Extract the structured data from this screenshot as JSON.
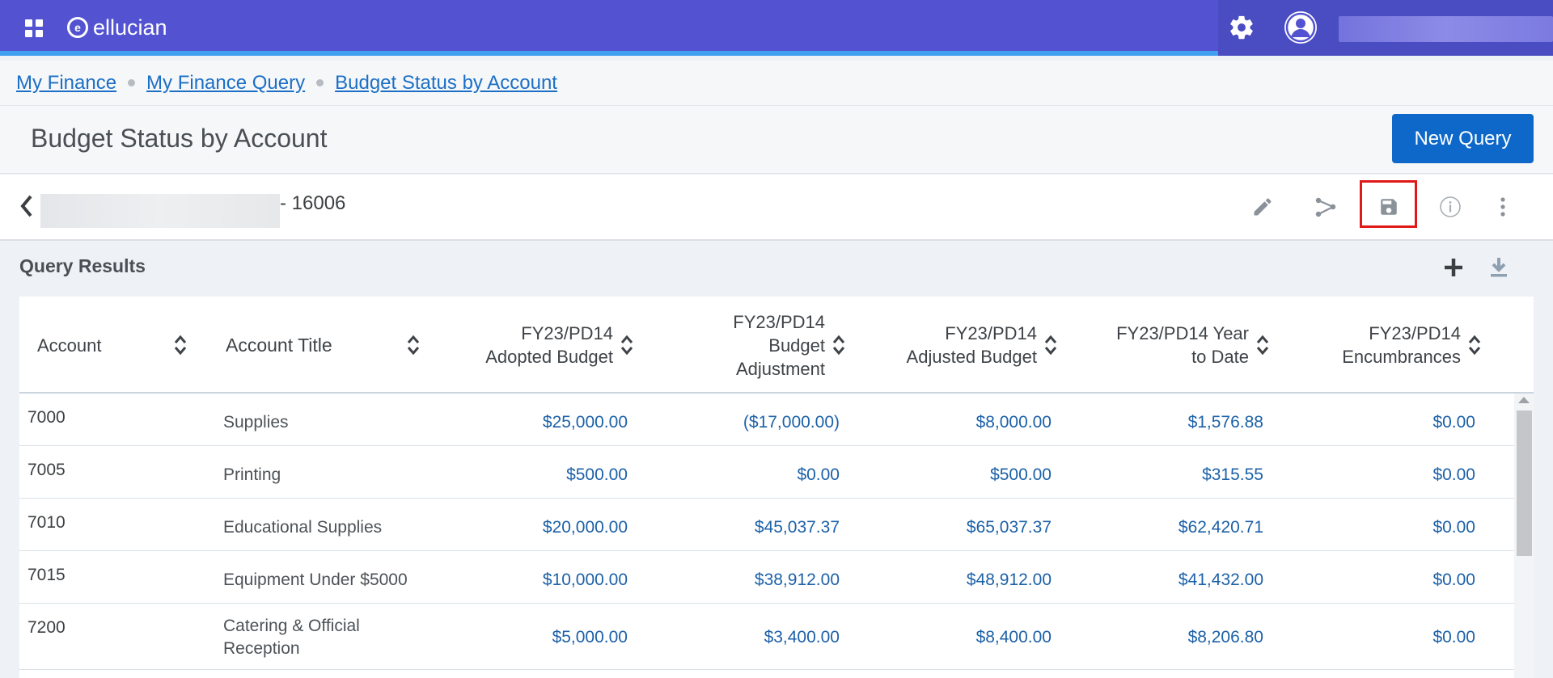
{
  "header": {
    "brand": "ellucian",
    "brand_mark": "e",
    "icons": [
      "apps-grid-icon",
      "gear-icon",
      "user-avatar-icon"
    ]
  },
  "breadcrumb": {
    "items": [
      "My Finance",
      "My Finance Query",
      "Budget Status by Account"
    ]
  },
  "page": {
    "title": "Budget Status by Account",
    "new_query_label": "New Query"
  },
  "query": {
    "id_suffix": "- 16006",
    "tools": [
      "edit-icon",
      "share-icon",
      "save-icon",
      "info-icon",
      "more-vertical-icon"
    ]
  },
  "results": {
    "title": "Query Results",
    "columns": [
      {
        "key": "account",
        "line1": "Account",
        "line2": "",
        "line3": ""
      },
      {
        "key": "title",
        "line1": "Account Title",
        "line2": "",
        "line3": ""
      },
      {
        "key": "adopted",
        "line1": "FY23/PD14",
        "line2": "Adopted Budget",
        "line3": ""
      },
      {
        "key": "adjustment",
        "line1": "FY23/PD14",
        "line2": "Budget",
        "line3": "Adjustment"
      },
      {
        "key": "adjusted",
        "line1": "FY23/PD14",
        "line2": "Adjusted Budget",
        "line3": ""
      },
      {
        "key": "ytd",
        "line1": "FY23/PD14 Year",
        "line2": "to Date",
        "line3": ""
      },
      {
        "key": "enc",
        "line1": "FY23/PD14",
        "line2": "Encumbrances",
        "line3": ""
      }
    ],
    "rows": [
      {
        "account": "7000",
        "title_l1": "Supplies",
        "title_l2": "",
        "adopted": "$25,000.00",
        "adjustment": "($17,000.00)",
        "adjusted": "$8,000.00",
        "ytd": "$1,576.88",
        "enc": "$0.00"
      },
      {
        "account": "7005",
        "title_l1": "Printing",
        "title_l2": "",
        "adopted": "$500.00",
        "adjustment": "$0.00",
        "adjusted": "$500.00",
        "ytd": "$315.55",
        "enc": "$0.00"
      },
      {
        "account": "7010",
        "title_l1": "Educational Supplies",
        "title_l2": "",
        "adopted": "$20,000.00",
        "adjustment": "$45,037.37",
        "adjusted": "$65,037.37",
        "ytd": "$62,420.71",
        "enc": "$0.00"
      },
      {
        "account": "7015",
        "title_l1": "Equipment Under $5000",
        "title_l2": "",
        "adopted": "$10,000.00",
        "adjustment": "$38,912.00",
        "adjusted": "$48,912.00",
        "ytd": "$41,432.00",
        "enc": "$0.00"
      },
      {
        "account": "7200",
        "title_l1": "Catering & Official",
        "title_l2": "Reception",
        "adopted": "$5,000.00",
        "adjustment": "$3,400.00",
        "adjusted": "$8,400.00",
        "ytd": "$8,206.80",
        "enc": "$0.00"
      }
    ]
  }
}
